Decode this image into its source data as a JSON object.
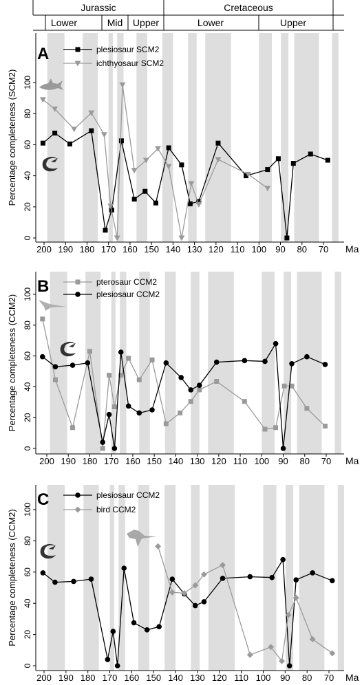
{
  "periods": [
    {
      "name": "Jurassic",
      "subdivisions": [
        "Lower",
        "Mid",
        "Upper"
      ]
    },
    {
      "name": "Cretaceous",
      "subdivisions": [
        "Lower",
        "Upper"
      ]
    }
  ],
  "x_unit": "Ma",
  "stage_bands_ma": [
    [
      198.5,
      190.5
    ],
    [
      182,
      175
    ],
    [
      170,
      168
    ],
    [
      166,
      163
    ],
    [
      157,
      152
    ],
    [
      145,
      140
    ],
    [
      133,
      129
    ],
    [
      125,
      113
    ],
    [
      100,
      94
    ],
    [
      89.8,
      86.3
    ],
    [
      83.6,
      72.1
    ],
    [
      66,
      63
    ]
  ],
  "colors": {
    "black_series": "#000000",
    "gray_series": "#9a9a9a",
    "band": "#dedede"
  },
  "chart_data": [
    {
      "type": "line",
      "panel_label": "A",
      "ylabel": "Percentage completeness (SCM2)",
      "ylim": [
        0,
        110
      ],
      "xlim": [
        204,
        58
      ],
      "x_ticks": [
        200,
        190,
        180,
        170,
        160,
        150,
        140,
        130,
        120,
        110,
        100,
        90,
        80,
        70
      ],
      "y_ticks": [
        0,
        20,
        40,
        60,
        80,
        100
      ],
      "legend_position": "top-left",
      "series": [
        {
          "name": "plesiosaur SCM2",
          "color": "#000000",
          "marker": "square",
          "x": [
            200.5,
            195,
            188,
            178,
            171.5,
            168.5,
            164,
            158,
            153,
            148,
            142,
            136,
            132,
            128,
            119,
            106,
            96,
            91,
            87,
            84,
            76,
            68
          ],
          "y": [
            61,
            67.5,
            60.5,
            69,
            5,
            18,
            62.5,
            25,
            30,
            22.5,
            58,
            47,
            22,
            23.5,
            61,
            40,
            44,
            51,
            0,
            48,
            54,
            50
          ]
        },
        {
          "name": "ichthyosaur SCM2",
          "color": "#9a9a9a",
          "marker": "triangle",
          "x": [
            200.5,
            195,
            186,
            178,
            172,
            169,
            166,
            163.5,
            158,
            152.5,
            147,
            142,
            136,
            131.5,
            128,
            119,
            105,
            96
          ],
          "y": [
            89,
            83,
            70,
            80.5,
            66.5,
            20.5,
            0,
            98.5,
            43.5,
            50,
            57.5,
            46,
            0,
            35,
            21.5,
            50.5,
            41,
            32
          ]
        }
      ]
    },
    {
      "type": "line",
      "panel_label": "B",
      "ylabel": "Percentage completeness (CCM2)",
      "ylim": [
        0,
        110
      ],
      "xlim": [
        208,
        62
      ],
      "x_ticks": [
        200,
        190,
        180,
        170,
        160,
        150,
        140,
        130,
        120,
        110,
        100,
        90,
        80,
        70
      ],
      "y_ticks": [
        0,
        20,
        40,
        60,
        80,
        100
      ],
      "legend_position": "top-left",
      "series": [
        {
          "name": "pterosaur CCM2",
          "color": "#9a9a9a",
          "marker": "square",
          "x": [
            202,
            196,
            188,
            180,
            174,
            171,
            168.5,
            165.5,
            162,
            157,
            151,
            144.5,
            138,
            133,
            129,
            121,
            108,
            98.5,
            93.5,
            89.5,
            86,
            79,
            70.5
          ],
          "y": [
            84,
            44.5,
            13.5,
            63,
            0,
            47.5,
            27,
            47.5,
            58.5,
            44.5,
            57.5,
            16,
            23,
            30.5,
            38,
            43.5,
            30.5,
            12.5,
            13.5,
            40.5,
            40.5,
            26,
            14.5
          ]
        },
        {
          "name": "plesiosaur CCM2",
          "color": "#000000",
          "marker": "circle",
          "x": [
            202,
            196,
            188,
            181,
            174,
            171,
            168.5,
            165.5,
            162,
            157,
            151,
            144.5,
            137.5,
            133,
            129,
            121,
            108,
            98.5,
            93.5,
            90,
            86,
            79,
            70.5
          ],
          "y": [
            59.5,
            53,
            54,
            55.5,
            4,
            22,
            0,
            62.5,
            27.5,
            23,
            25,
            55.5,
            46,
            38,
            41,
            56,
            57,
            56.5,
            68,
            0,
            55,
            59.5,
            54.5
          ]
        }
      ]
    },
    {
      "type": "line",
      "panel_label": "C",
      "ylabel": "Percentage completeness (CCM2)",
      "ylim": [
        0,
        110
      ],
      "xlim": [
        205,
        61
      ],
      "x_ticks": [
        200,
        190,
        180,
        170,
        160,
        150,
        140,
        130,
        120,
        110,
        100,
        90,
        80,
        70
      ],
      "y_ticks": [
        0,
        20,
        40,
        60,
        80,
        100
      ],
      "legend_position": "top-left",
      "series": [
        {
          "name": "plesiosaur CCM2",
          "color": "#000000",
          "marker": "circle",
          "x": [
            200.5,
            195,
            186.5,
            178.5,
            171,
            168.5,
            166.5,
            163.5,
            159,
            153,
            147.5,
            141.5,
            136,
            131,
            127,
            118.5,
            106,
            96,
            91,
            88,
            85,
            77.5,
            68.5
          ],
          "y": [
            59.5,
            53.5,
            54,
            55.5,
            4,
            22,
            0,
            62.5,
            27.5,
            23,
            25,
            55.5,
            46,
            38.5,
            41,
            56,
            57,
            56.5,
            68,
            0,
            55,
            59.5,
            54.5
          ]
        },
        {
          "name": "bird CCM2",
          "color": "#9a9a9a",
          "marker": "diamond",
          "x": [
            148,
            141.5,
            136,
            131,
            127,
            118.5,
            106,
            96.5,
            91.5,
            88.5,
            85,
            77.5,
            68.5
          ],
          "y": [
            76.5,
            47,
            46.5,
            51.5,
            58.5,
            64.5,
            7,
            12,
            3,
            32.5,
            43.5,
            17,
            8
          ]
        }
      ]
    }
  ]
}
